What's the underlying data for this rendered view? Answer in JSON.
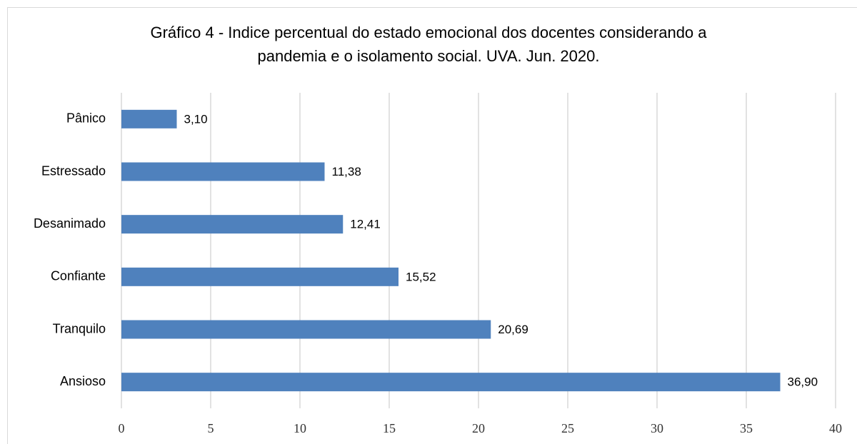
{
  "chart_data": {
    "type": "bar",
    "orientation": "horizontal",
    "title": [
      "Gráfico 4 - Indice percentual do estado emocional dos docentes considerando a",
      "pandemia e o isolamento social. UVA. Jun. 2020."
    ],
    "categories": [
      "Pânico",
      "Estressado",
      "Desanimado",
      "Confiante",
      "Tranquilo",
      "Ansioso"
    ],
    "values": [
      3.1,
      11.38,
      12.41,
      15.52,
      20.69,
      36.9
    ],
    "value_labels": [
      "3,10",
      "11,38",
      "12,41",
      "15,52",
      "20,69",
      "36,90"
    ],
    "color": "#4f81bd",
    "xlim": [
      0,
      40
    ],
    "xticks": [
      0,
      5,
      10,
      15,
      20,
      25,
      30,
      35,
      40
    ],
    "grid": true
  }
}
